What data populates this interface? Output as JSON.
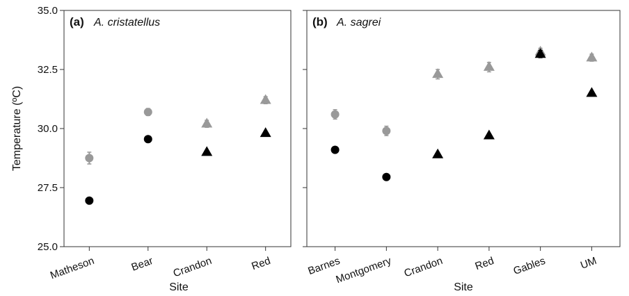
{
  "chart_data": [
    {
      "type": "scatter",
      "panel": "(a)",
      "title": "A. cristatellus",
      "xlabel": "Site",
      "ylabel": "Temperature (ºC)",
      "ylim": [
        25.0,
        35.0
      ],
      "yticks": [
        "25.0",
        "27.5",
        "30.0",
        "32.5",
        "35.0"
      ],
      "categories": [
        "Matheson",
        "Bear",
        "Crandon",
        "Red"
      ],
      "series": [
        {
          "color": "#999999",
          "points": [
            {
              "category": "Matheson",
              "y": 28.75,
              "err": 0.25,
              "marker": "circle"
            },
            {
              "category": "Bear",
              "y": 30.7,
              "err": 0.15,
              "marker": "circle"
            },
            {
              "category": "Crandon",
              "y": 30.2,
              "err": 0.15,
              "marker": "triangle"
            },
            {
              "category": "Red",
              "y": 31.2,
              "err": 0.15,
              "marker": "triangle"
            }
          ]
        },
        {
          "color": "#000000",
          "points": [
            {
              "category": "Matheson",
              "y": 26.95,
              "marker": "circle"
            },
            {
              "category": "Bear",
              "y": 29.55,
              "marker": "circle"
            },
            {
              "category": "Crandon",
              "y": 29.0,
              "marker": "triangle"
            },
            {
              "category": "Red",
              "y": 29.8,
              "marker": "triangle"
            }
          ]
        }
      ]
    },
    {
      "type": "scatter",
      "panel": "(b)",
      "title": "A. sagrei",
      "xlabel": "Site",
      "ylim": [
        25.0,
        35.0
      ],
      "categories": [
        "Barnes",
        "Montgomery",
        "Crandon",
        "Red",
        "Gables",
        "UM"
      ],
      "series": [
        {
          "color": "#999999",
          "points": [
            {
              "category": "Barnes",
              "y": 30.6,
              "err": 0.2,
              "marker": "circle"
            },
            {
              "category": "Montgomery",
              "y": 29.9,
              "err": 0.2,
              "marker": "circle"
            },
            {
              "category": "Crandon",
              "y": 32.3,
              "err": 0.2,
              "marker": "triangle"
            },
            {
              "category": "Red",
              "y": 32.6,
              "err": 0.2,
              "marker": "triangle"
            },
            {
              "category": "Gables",
              "y": 33.25,
              "err": 0.15,
              "marker": "triangle"
            },
            {
              "category": "UM",
              "y": 33.0,
              "err": 0.15,
              "marker": "triangle"
            }
          ]
        },
        {
          "color": "#000000",
          "points": [
            {
              "category": "Barnes",
              "y": 29.1,
              "marker": "circle"
            },
            {
              "category": "Montgomery",
              "y": 27.95,
              "marker": "circle"
            },
            {
              "category": "Crandon",
              "y": 28.9,
              "marker": "triangle"
            },
            {
              "category": "Red",
              "y": 29.7,
              "marker": "triangle"
            },
            {
              "category": "Gables",
              "y": 33.15,
              "err": 0.15,
              "marker": "triangle"
            },
            {
              "category": "UM",
              "y": 31.5,
              "marker": "triangle"
            }
          ]
        }
      ]
    }
  ]
}
